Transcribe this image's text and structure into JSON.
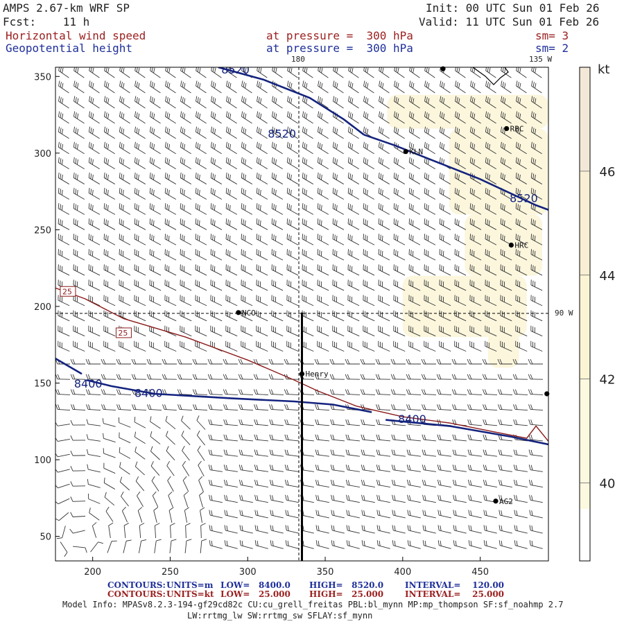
{
  "header": {
    "model": "AMPS 2.67-km WRF SP",
    "forecast": "Fcst:    11 h",
    "init": "Init: 00 UTC Sun 01 Feb 26",
    "valid": "Valid: 11 UTC Sun 01 Feb 26",
    "field1_name": "Horizontal wind speed",
    "field1_level": "at pressure =  300 hPa",
    "field1_smooth": "sm= 3",
    "field2_name": "Geopotential height",
    "field2_level": "at pressure =  300 hPa",
    "field2_smooth": "sm= 2"
  },
  "map": {
    "x_ticks": [
      "200",
      "250",
      "300",
      "350",
      "400",
      "450"
    ],
    "y_ticks": [
      "350",
      "300",
      "250",
      "200",
      "150",
      "100",
      "50"
    ],
    "x_range": [
      176,
      494
    ],
    "y_range": [
      34,
      356
    ],
    "lon_180": "180",
    "lon_135w": "135 W",
    "lon_90w": "90 W",
    "stations": [
      {
        "name": "RBC",
        "x": 467,
        "y": 316
      },
      {
        "name": "KLN",
        "x": 402,
        "y": 301
      },
      {
        "name": "HRC",
        "x": 470,
        "y": 240
      },
      {
        "name": "NCO",
        "x": 294,
        "y": 196
      },
      {
        "name": "Henry",
        "x": 335,
        "y": 156
      },
      {
        "name": "AG2",
        "x": 460,
        "y": 73
      },
      {
        "name": "",
        "x": 493,
        "y": 143
      },
      {
        "name": "",
        "x": 426,
        "y": 355
      }
    ],
    "height_contour_labels": [
      "8520",
      "8520",
      "8520",
      "8400",
      "8400",
      "8400"
    ],
    "speed_contour_labels": [
      "25",
      "25"
    ],
    "height_contours": [
      [
        [
          281,
          356
        ],
        [
          310,
          348
        ],
        [
          340,
          336
        ],
        [
          362,
          322
        ],
        [
          375,
          312
        ]
      ],
      [
        [
          375,
          312
        ],
        [
          395,
          305
        ],
        [
          420,
          295
        ],
        [
          450,
          283
        ],
        [
          486,
          266
        ],
        [
          494,
          263
        ]
      ],
      [
        [
          176,
          166
        ],
        [
          193,
          156
        ]
      ],
      [
        [
          196,
          152
        ],
        [
          212,
          148
        ],
        [
          240,
          143
        ],
        [
          290,
          140
        ],
        [
          330,
          138
        ],
        [
          355,
          136
        ],
        [
          380,
          131
        ]
      ],
      [
        [
          389,
          126
        ],
        [
          430,
          122
        ],
        [
          470,
          115
        ],
        [
          494,
          110
        ]
      ]
    ],
    "speed_contour": [
      [
        176,
        212
      ],
      [
        195,
        205
      ],
      [
        220,
        192
      ],
      [
        260,
        180
      ],
      [
        300,
        165
      ],
      [
        330,
        152
      ],
      [
        345,
        145
      ],
      [
        370,
        135
      ],
      [
        400,
        128
      ],
      [
        430,
        124
      ],
      [
        460,
        118
      ],
      [
        480,
        114
      ],
      [
        486,
        122
      ],
      [
        494,
        112
      ]
    ],
    "shading": [
      {
        "x": 390,
        "y": 316,
        "w": 104,
        "h": 22
      },
      {
        "x": 430,
        "y": 260,
        "w": 64,
        "h": 56
      },
      {
        "x": 440,
        "y": 220,
        "w": 50,
        "h": 40
      },
      {
        "x": 400,
        "y": 180,
        "w": 80,
        "h": 40
      },
      {
        "x": 455,
        "y": 160,
        "w": 20,
        "h": 24
      }
    ],
    "cross_section": {
      "x": 335,
      "y_bottom": 34,
      "y_top": 196
    }
  },
  "colorbar": {
    "unit": "kt",
    "ticks": [
      "46",
      "44",
      "42",
      "40"
    ],
    "range": [
      38.5,
      48
    ]
  },
  "footer": {
    "contours1_label": "CONTOURS:",
    "contours1_units": "UNITS=m",
    "contours1_low": "LOW=   8400.0",
    "contours1_high": "HIGH=   8520.0",
    "contours1_interval": "INTERVAL=    120.00",
    "contours2_label": "CONTOURS:",
    "contours2_units": "UNITS=kt",
    "contours2_low": "LOW=   25.000",
    "contours2_high": "HIGH=   25.000",
    "contours2_interval": "INTERVAL=    25.000",
    "model_info": "Model Info: MPASv8.2.3-194-gf29cd82c CU:cu_grell_freitas PBL:bl_mynn MP:mp_thompson SF:sf_noahmp 2.7",
    "model_info2": "LW:rrtmg_lw SW:rrtmg_sw SFLAY:sf_mynn"
  },
  "colors": {
    "height": "#14237e",
    "speed": "#8b1a1a",
    "shade_light": "#fbf6dc",
    "shade_dark": "#f3ead7"
  }
}
